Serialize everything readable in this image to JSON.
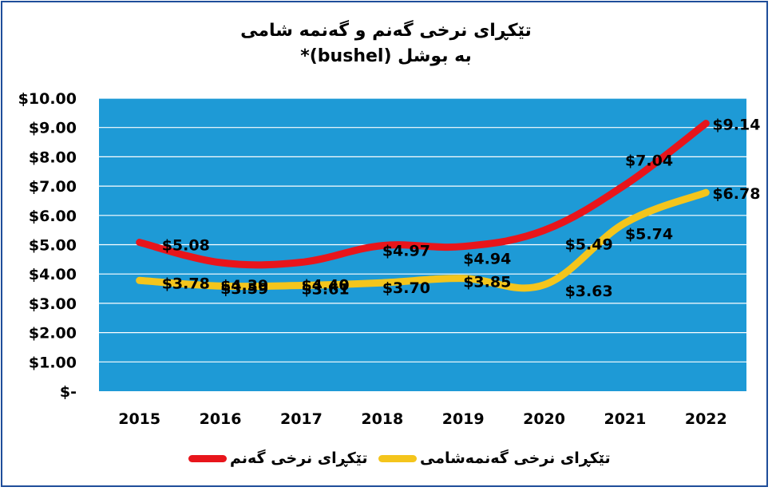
{
  "chart_data": {
    "type": "line",
    "title": "تێکڕای نرخی گەنم و گەنمە شامی",
    "subtitle": "*(bushel) بە بوشل",
    "categories": [
      "2015",
      "2016",
      "2017",
      "2018",
      "2019",
      "2020",
      "2021",
      "2022"
    ],
    "y_tick_labels": [
      "$-",
      "$1.00",
      "$2.00",
      "$3.00",
      "$4.00",
      "$5.00",
      "$6.00",
      "$7.00",
      "$8.00",
      "$9.00",
      "$10.00"
    ],
    "ylim": [
      0,
      10
    ],
    "grid": true,
    "legend_position": "bottom",
    "series": [
      {
        "name": "تێکڕای نرخی گەنم",
        "color": "#e8151b",
        "values": [
          5.08,
          4.39,
          4.4,
          4.97,
          4.94,
          5.49,
          7.04,
          9.14
        ],
        "labels": [
          "$5.08",
          "$4.39",
          "$4.40",
          "$4.97",
          "$4.94",
          "$5.49",
          "$7.04",
          "$9.14"
        ]
      },
      {
        "name": "تێکڕای نرخی گەنمەشامی",
        "color": "#f4c51c",
        "values": [
          3.78,
          3.59,
          3.61,
          3.7,
          3.85,
          3.63,
          5.74,
          6.78
        ],
        "labels": [
          "$3.78",
          "$3.59",
          "$3.61",
          "$3.70",
          "$3.85",
          "$3.63",
          "$5.74",
          "$6.78"
        ]
      }
    ],
    "plot_background": "#1e9ad6"
  }
}
